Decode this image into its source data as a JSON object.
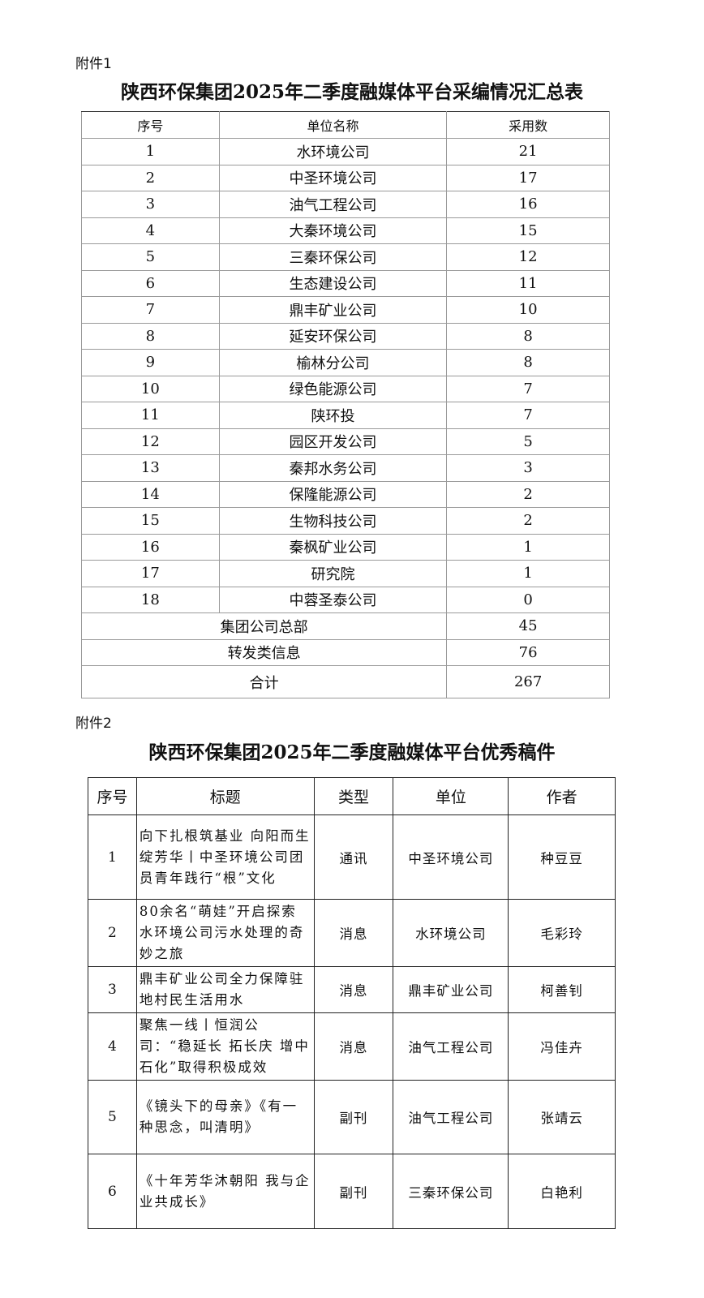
{
  "annex1": {
    "label": "附件1",
    "title": "陕西环保集团2025年二季度融媒体平台采编情况汇总表",
    "headers": [
      "序号",
      "单位名称",
      "采用数"
    ],
    "rows": [
      [
        "1",
        "水环境公司",
        "21"
      ],
      [
        "2",
        "中圣环境公司",
        "17"
      ],
      [
        "3",
        "油气工程公司",
        "16"
      ],
      [
        "4",
        "大秦环境公司",
        "15"
      ],
      [
        "5",
        "三秦环保公司",
        "12"
      ],
      [
        "6",
        "生态建设公司",
        "11"
      ],
      [
        "7",
        "鼎丰矿业公司",
        "10"
      ],
      [
        "8",
        "延安环保公司",
        "8"
      ],
      [
        "9",
        "榆林分公司",
        "8"
      ],
      [
        "10",
        "绿色能源公司",
        "7"
      ],
      [
        "11",
        "陕环投",
        "7"
      ],
      [
        "12",
        "园区开发公司",
        "5"
      ],
      [
        "13",
        "秦邦水务公司",
        "3"
      ],
      [
        "14",
        "保隆能源公司",
        "2"
      ],
      [
        "15",
        "生物科技公司",
        "2"
      ],
      [
        "16",
        "秦枫矿业公司",
        "1"
      ],
      [
        "17",
        "研究院",
        "1"
      ],
      [
        "18",
        "中蓉圣泰公司",
        "0"
      ]
    ],
    "extra": [
      [
        "集团公司总部",
        "45"
      ],
      [
        "转发类信息",
        "76"
      ]
    ],
    "total": [
      "合计",
      "267"
    ]
  },
  "annex2": {
    "label": "附件2",
    "title": "陕西环保集团2025年二季度融媒体平台优秀稿件",
    "headers": [
      "序号",
      "标题",
      "类型",
      "单位",
      "作者"
    ],
    "rows": [
      [
        "1",
        "向下扎根筑基业 向阳而生绽芳华丨中圣环境公司团员青年践行“根”文化",
        "通讯",
        "中圣环境公司",
        "种豆豆"
      ],
      [
        "2",
        "80余名“萌娃”开启探索水环境公司污水处理的奇妙之旅",
        "消息",
        "水环境公司",
        "毛彩玲"
      ],
      [
        "3",
        "鼎丰矿业公司全力保障驻地村民生活用水",
        "消息",
        "鼎丰矿业公司",
        "柯善钊"
      ],
      [
        "4",
        "聚焦一线丨恒润公司：“稳延长 拓长庆 增中石化”取得积极成效",
        "消息",
        "油气工程公司",
        "冯佳卉"
      ],
      [
        "5",
        "《镜头下的母亲》《有一种思念，叫清明》",
        "副刊",
        "油气工程公司",
        "张靖云"
      ],
      [
        "6",
        "《十年芳华沐朝阳 我与企业共成长》",
        "副刊",
        "三秦环保公司",
        "白艳利"
      ]
    ]
  }
}
